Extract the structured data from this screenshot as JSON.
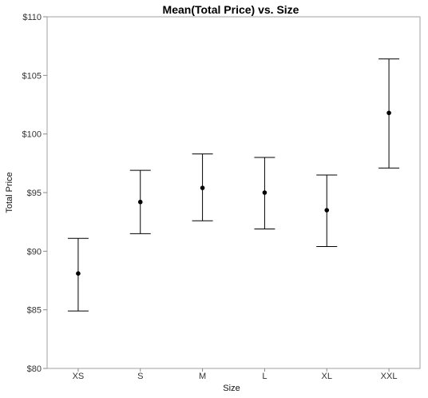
{
  "chart_data": {
    "type": "scatter",
    "title": "Mean(Total Price) vs. Size",
    "xlabel": "Size",
    "ylabel": "Total Price",
    "categories": [
      "XS",
      "S",
      "M",
      "L",
      "XL",
      "XXL"
    ],
    "series": [
      {
        "means": [
          88.1,
          94.2,
          95.4,
          95.0,
          93.5,
          101.8
        ],
        "lower": [
          84.9,
          91.5,
          92.6,
          91.9,
          90.4,
          97.1
        ],
        "upper": [
          91.1,
          96.9,
          98.3,
          98.0,
          96.5,
          106.4
        ]
      }
    ],
    "ylim": [
      80,
      110
    ],
    "yticks": [
      80,
      85,
      90,
      95,
      100,
      105,
      110
    ],
    "ytick_labels": [
      "$80",
      "$85",
      "$90",
      "$95",
      "$100",
      "$105",
      "$110"
    ],
    "grid": false,
    "legend": "none"
  },
  "colors": {
    "frame": "#a0a0a0",
    "marks": "#000000"
  }
}
